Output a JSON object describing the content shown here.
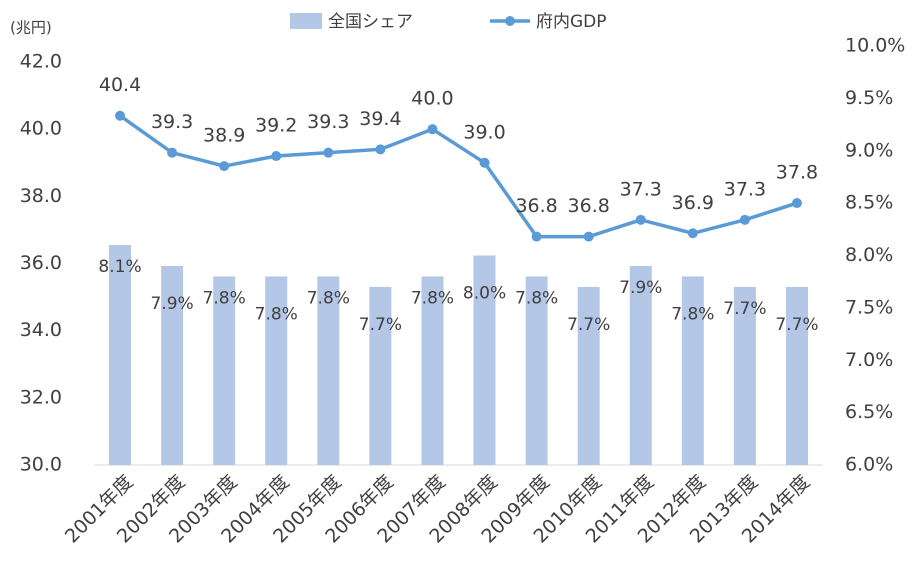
{
  "chart_data": {
    "type": "bar-line",
    "y_unit_label": "(兆円)",
    "categories": [
      "2001年度",
      "2002年度",
      "2003年度",
      "2004年度",
      "2005年度",
      "2006年度",
      "2007年度",
      "2008年度",
      "2009年度",
      "2010年度",
      "2011年度",
      "2012年度",
      "2013年度",
      "2014年度"
    ],
    "series": [
      {
        "name": "全国シェア",
        "type": "bar",
        "axis": "y2",
        "color": "#b4c7e7",
        "values": [
          8.1,
          7.9,
          7.8,
          7.8,
          7.8,
          7.7,
          7.8,
          8.0,
          7.8,
          7.7,
          7.9,
          7.8,
          7.7,
          7.7
        ],
        "value_labels": [
          "8.1%",
          "7.9%",
          "7.8%",
          "7.8%",
          "7.8%",
          "7.7%",
          "7.8%",
          "8.0%",
          "7.8%",
          "7.7%",
          "7.9%",
          "7.8%",
          "7.7%",
          "7.7%"
        ]
      },
      {
        "name": "府内GDP",
        "type": "line",
        "axis": "y",
        "color": "#5b9bd5",
        "values": [
          40.4,
          39.3,
          38.9,
          39.2,
          39.3,
          39.4,
          40.0,
          39.0,
          36.8,
          36.8,
          37.3,
          36.9,
          37.3,
          37.8
        ],
        "value_labels": [
          "40.4",
          "39.3",
          "38.9",
          "39.2",
          "39.3",
          "39.4",
          "40.0",
          "39.0",
          "36.8",
          "36.8",
          "37.3",
          "36.9",
          "37.3",
          "37.8"
        ]
      }
    ],
    "ylim": [
      30,
      42
    ],
    "yticks": [
      {
        "value": 30,
        "label": "30.0"
      },
      {
        "value": 32,
        "label": "32.0"
      },
      {
        "value": 34,
        "label": "34.0"
      },
      {
        "value": 36,
        "label": "36.0"
      },
      {
        "value": 38,
        "label": "38.0"
      },
      {
        "value": 40,
        "label": "40.0"
      },
      {
        "value": 42,
        "label": "42.0"
      }
    ],
    "y2lim": [
      6,
      10
    ],
    "y2ticks": [
      {
        "value": 6,
        "label": "6.0%"
      },
      {
        "value": 6.5,
        "label": "6.5%"
      },
      {
        "value": 7,
        "label": "7.0%"
      },
      {
        "value": 7.5,
        "label": "7.5%"
      },
      {
        "value": 8,
        "label": "8.0%"
      },
      {
        "value": 8.5,
        "label": "8.5%"
      },
      {
        "value": 9,
        "label": "9.0%"
      },
      {
        "value": 9.5,
        "label": "9.5%"
      },
      {
        "value": 10,
        "label": "10.0%"
      }
    ],
    "legend": "top"
  }
}
